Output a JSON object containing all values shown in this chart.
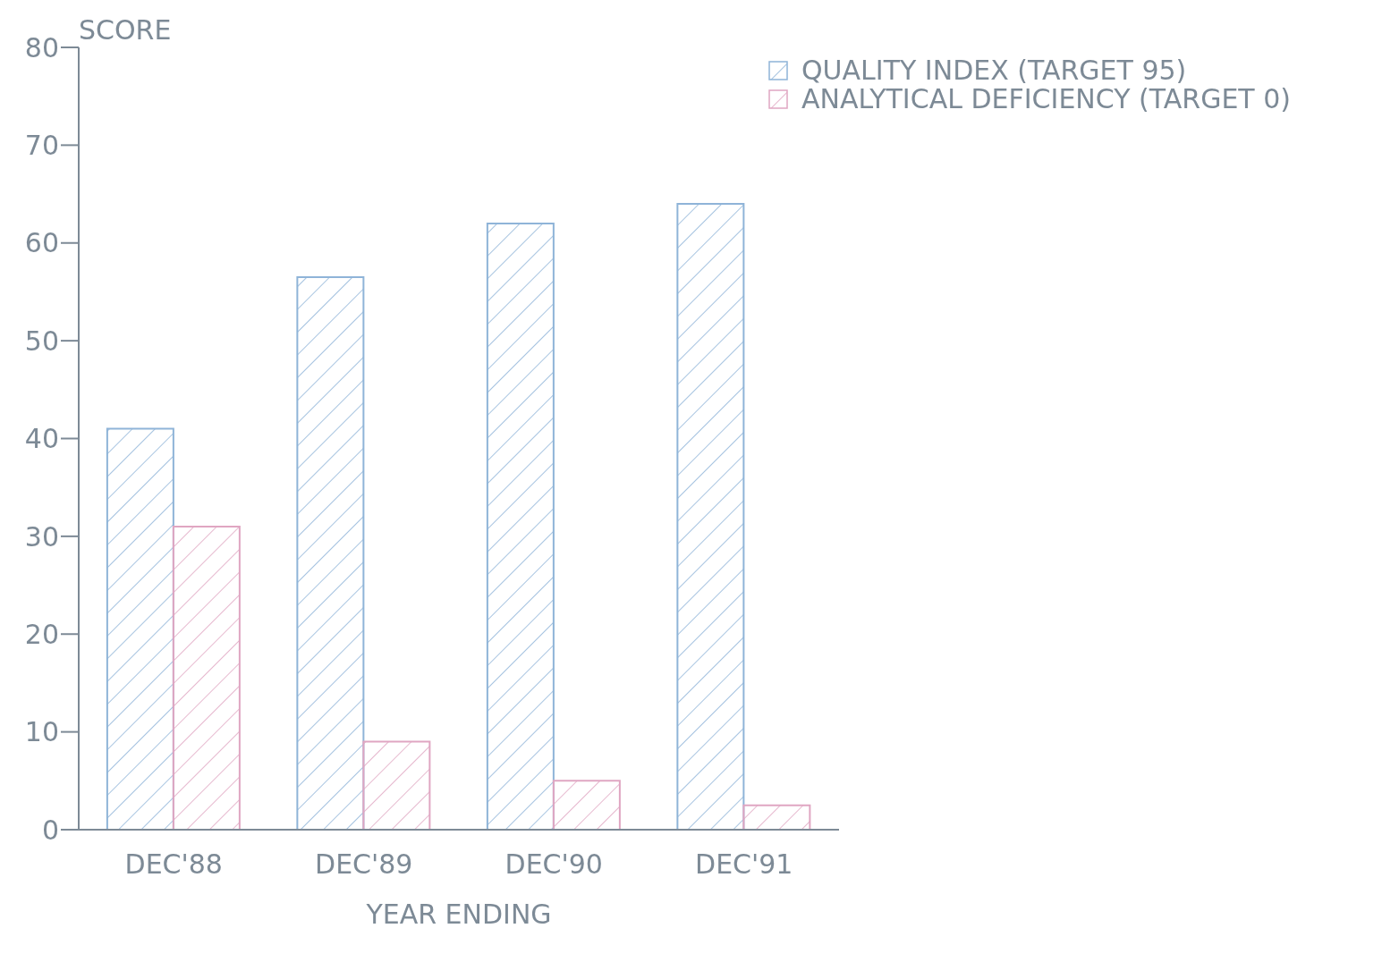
{
  "chart_data": {
    "type": "bar",
    "ylabel": "SCORE",
    "xlabel": "YEAR ENDING",
    "categories": [
      "DEC'88",
      "DEC'89",
      "DEC'90",
      "DEC'91"
    ],
    "series": [
      {
        "name": "QUALITY INDEX (TARGET 95)",
        "color": "#8fb4d8",
        "values": [
          41,
          56.5,
          62,
          64
        ]
      },
      {
        "name": "ANALYTICAL DEFICIENCY (TARGET 0)",
        "color": "#e0a6c2",
        "values": [
          31,
          9,
          5,
          2.5
        ]
      }
    ],
    "ylim": [
      0,
      80
    ],
    "yticks": [
      0,
      10,
      20,
      30,
      40,
      50,
      60,
      70,
      80
    ],
    "grid": false,
    "legend": "top right"
  }
}
